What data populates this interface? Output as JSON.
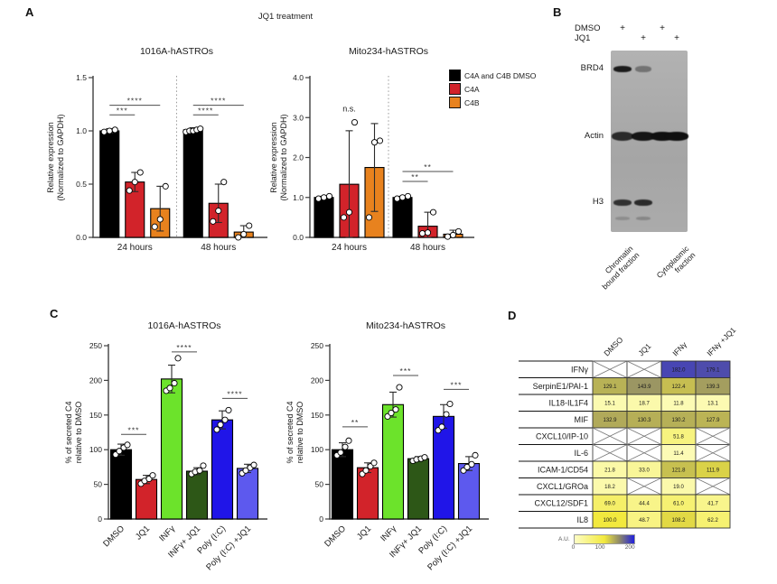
{
  "figure": {
    "panels": {
      "a": "A",
      "b": "B",
      "c": "C",
      "d": "D"
    },
    "title": "JQ1 treatment",
    "legend": {
      "items": [
        {
          "label": "C4A and C4B DMSO",
          "color": "black"
        },
        {
          "label": "C4A",
          "color": "red"
        },
        {
          "label": "C4B",
          "color": "orange"
        }
      ]
    }
  },
  "colors": {
    "black": "#000000",
    "red": "#d2232a",
    "orange": "#e8821e",
    "bright_green": "#6ce32b",
    "dark_green": "#2d5717",
    "blue": "#2015e8",
    "violet": "#5d59ee",
    "heat_low": "#fdfdc4",
    "heat_mid": "#f2e93e",
    "heat_olive": "#8f8a68",
    "heat_high": "#2020dd"
  },
  "chart_data": [
    {
      "type": "bar",
      "title": "1016A-hASTROs",
      "ylabel": "Relative expression\n(Normalized to GAPDH)",
      "ylim": [
        0,
        1.5
      ],
      "yticks": [
        0.0,
        0.5,
        1.0,
        1.5
      ],
      "ytick_labels": [
        "0.0",
        "0.5",
        "1.0",
        "1.5"
      ],
      "categories": [
        "24 hours",
        "48 hours"
      ],
      "series": [
        {
          "name": "C4A and C4B DMSO",
          "color": "black",
          "values": [
            1.0,
            1.01
          ],
          "errors": [
            0.02,
            0.02
          ],
          "points": [
            [
              0.99,
              1.0,
              1.01
            ],
            [
              0.99,
              1.0,
              1.0,
              1.01,
              1.02
            ]
          ]
        },
        {
          "name": "C4A",
          "color": "red",
          "values": [
            0.52,
            0.32
          ],
          "errors": [
            0.09,
            0.18
          ],
          "points": [
            [
              0.44,
              0.52,
              0.61
            ],
            [
              0.15,
              0.25,
              0.52
            ]
          ]
        },
        {
          "name": "C4B",
          "color": "orange",
          "values": [
            0.27,
            0.05
          ],
          "errors": [
            0.21,
            0.06
          ],
          "points": [
            [
              0.1,
              0.17,
              0.48
            ],
            [
              0.0,
              0.03,
              0.11
            ]
          ]
        }
      ],
      "sig": [
        {
          "group": 0,
          "from": 0,
          "to": 2,
          "y": 1.24,
          "label": "****"
        },
        {
          "group": 0,
          "from": 0,
          "to": 1,
          "y": 1.15,
          "label": "***"
        },
        {
          "group": 1,
          "from": 0,
          "to": 2,
          "y": 1.24,
          "label": "****"
        },
        {
          "group": 1,
          "from": 0,
          "to": 1,
          "y": 1.15,
          "label": "****"
        }
      ],
      "annotations": []
    },
    {
      "type": "bar",
      "title": "Mito234-hASTROs",
      "ylabel": "Relative expression\n(Normalized to GAPDH)",
      "ylim": [
        0,
        4.0
      ],
      "yticks": [
        0.0,
        1.0,
        2.0,
        3.0,
        4.0
      ],
      "ytick_labels": [
        "0.0",
        "1.0",
        "2.0",
        "3.0",
        "4.0"
      ],
      "categories": [
        "24 hours",
        "48 hours"
      ],
      "series": [
        {
          "name": "C4A and C4B DMSO",
          "color": "black",
          "values": [
            1.0,
            1.0
          ],
          "errors": [
            0.03,
            0.03
          ],
          "points": [
            [
              0.97,
              1.0,
              1.03
            ],
            [
              0.97,
              1.0,
              1.03
            ]
          ]
        },
        {
          "name": "C4A",
          "color": "red",
          "values": [
            1.33,
            0.28
          ],
          "errors": [
            1.34,
            0.35
          ],
          "points": [
            [
              0.5,
              0.63,
              2.88
            ],
            [
              0.1,
              0.12,
              0.63
            ]
          ]
        },
        {
          "name": "C4B",
          "color": "orange",
          "values": [
            1.75,
            0.08
          ],
          "errors": [
            1.1,
            0.1
          ],
          "points": [
            [
              0.5,
              2.38,
              2.42
            ],
            [
              0.02,
              0.06,
              0.15
            ]
          ]
        }
      ],
      "sig": [
        {
          "group": 1,
          "from": 0,
          "to": 2,
          "y": 1.65,
          "label": "**"
        },
        {
          "group": 1,
          "from": 0,
          "to": 1,
          "y": 1.4,
          "label": "**"
        }
      ],
      "annotations": [
        {
          "group": 0,
          "y": 3.15,
          "text": "n.s."
        }
      ]
    },
    {
      "type": "bar",
      "title": "1016A-hASTROs",
      "ylabel": "% of secreted C4\nrelative to DMSO",
      "ylim": [
        0,
        250
      ],
      "yticks": [
        0,
        50,
        100,
        150,
        200,
        250
      ],
      "ytick_labels": [
        "0",
        "50",
        "100",
        "150",
        "200",
        "250"
      ],
      "categories": [
        "DMSO",
        "JQ1",
        "INFγ",
        "INFγ+ JQ1",
        "Poly (I:C)",
        "Poly (I:C) +JQ1"
      ],
      "values": [
        100,
        57,
        202,
        69,
        143,
        73
      ],
      "errors": [
        8,
        6,
        20,
        5,
        13,
        6
      ],
      "bar_colors": [
        "black",
        "red",
        "bright_green",
        "dark_green",
        "blue",
        "violet"
      ],
      "points": [
        [
          93,
          98,
          103,
          107
        ],
        [
          51,
          55,
          58,
          63
        ],
        [
          185,
          189,
          196,
          232
        ],
        [
          65,
          68,
          70,
          77
        ],
        [
          129,
          136,
          143,
          157
        ],
        [
          66,
          70,
          74,
          78
        ]
      ],
      "sig": [
        {
          "from": 0,
          "to": 1,
          "y": 122,
          "label": "***"
        },
        {
          "from": 2,
          "to": 3,
          "y": 241,
          "label": "****"
        },
        {
          "from": 4,
          "to": 5,
          "y": 174,
          "label": "****"
        }
      ],
      "annotations": []
    },
    {
      "type": "bar",
      "title": "Mito234-hASTROs",
      "ylabel": "% of secreted C4\nrelative to DMSO",
      "ylim": [
        0,
        250
      ],
      "yticks": [
        0,
        50,
        100,
        150,
        200,
        250
      ],
      "ytick_labels": [
        "0",
        "50",
        "100",
        "150",
        "200",
        "250"
      ],
      "categories": [
        "DMSO",
        "JQ1",
        "INFγ",
        "INFγ+ JQ1",
        "Poly (I:C)",
        "Poly (I:C) +JQ1"
      ],
      "values": [
        100,
        74,
        165,
        87,
        148,
        80
      ],
      "errors": [
        10,
        7,
        18,
        3,
        17,
        10
      ],
      "bar_colors": [
        "black",
        "red",
        "bright_green",
        "dark_green",
        "blue",
        "violet"
      ],
      "points": [
        [
          92,
          96,
          104,
          113
        ],
        [
          65,
          70,
          76,
          81
        ],
        [
          148,
          153,
          158,
          190
        ],
        [
          84,
          86,
          87,
          89
        ],
        [
          128,
          133,
          151,
          166
        ],
        [
          70,
          75,
          79,
          92
        ]
      ],
      "sig": [
        {
          "from": 0,
          "to": 1,
          "y": 133,
          "label": "**"
        },
        {
          "from": 2,
          "to": 3,
          "y": 207,
          "label": "***"
        },
        {
          "from": 4,
          "to": 5,
          "y": 187,
          "label": "***"
        }
      ],
      "annotations": []
    },
    {
      "type": "heatmap",
      "columns": [
        "DMSO",
        "JQ1",
        "IFNγ",
        "IFNγ +JQ1"
      ],
      "rows": [
        "IFNγ",
        "SerpinE1/PAI-1",
        "IL18-IL1F4",
        "MIF",
        "CXCL10/IP-10",
        "IL-6",
        "ICAM-1/CD54",
        "CXCL1/GROa",
        "CXCL12/SDF1",
        "IL8"
      ],
      "values": [
        [
          null,
          null,
          182.0,
          179.1
        ],
        [
          129.1,
          143.9,
          122.4,
          139.3
        ],
        [
          15.1,
          18.7,
          11.8,
          13.1
        ],
        [
          132.9,
          130.3,
          130.2,
          127.9
        ],
        [
          null,
          null,
          51.8,
          null
        ],
        [
          null,
          null,
          11.4,
          null
        ],
        [
          21.8,
          33.0,
          121.8,
          111.9
        ],
        [
          18.2,
          null,
          19.0,
          null
        ],
        [
          69.0,
          44.4,
          61.0,
          41.7
        ],
        [
          100.0,
          48.7,
          108.2,
          62.2
        ]
      ],
      "colorbar": {
        "label": "A.U.",
        "ticks": [
          "0",
          "100",
          "200"
        ]
      }
    }
  ],
  "panel_b": {
    "header_rows": [
      {
        "label": "DMSO",
        "lanes": [
          "+",
          "",
          "+",
          ""
        ]
      },
      {
        "label": "JQ1",
        "lanes": [
          "",
          "+",
          "",
          "+"
        ]
      }
    ],
    "bands": [
      {
        "label": "BRD4",
        "intensities": [
          0.92,
          0.38,
          0,
          0
        ]
      },
      {
        "label": "Actin",
        "intensities": [
          0.82,
          0.96,
          1,
          1
        ]
      },
      {
        "label": "H3",
        "intensities": [
          0.78,
          0.82,
          0,
          0
        ]
      },
      {
        "label": "",
        "intensities": [
          0.18,
          0.22,
          0,
          0
        ]
      }
    ],
    "fraction_labels": [
      [
        "Chromatin",
        "bound fraction"
      ],
      [
        "Cytoplasmic",
        "fraction"
      ]
    ]
  }
}
